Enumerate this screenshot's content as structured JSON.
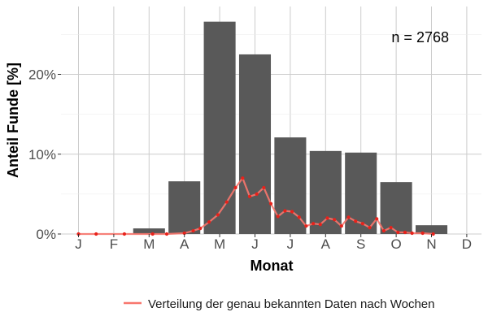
{
  "chart_data": {
    "type": "bar",
    "categories": [
      "J",
      "F",
      "M",
      "A",
      "M",
      "J",
      "J",
      "A",
      "S",
      "O",
      "N",
      "D"
    ],
    "values": [
      0,
      0,
      0.7,
      6.6,
      26.6,
      22.5,
      12.1,
      10.4,
      10.2,
      6.5,
      1.1,
      0
    ],
    "xlabel": "Monat",
    "ylabel": "Anteil Funde [%]",
    "ylim": [
      0,
      28.5
    ],
    "y_ticks": [
      0,
      10,
      20
    ],
    "y_tick_labels": [
      "0%",
      "10%",
      "20%"
    ],
    "annotation": "n = 2768",
    "grid": true,
    "legend_position": "bottom-right",
    "bar_color": "#595959",
    "line_series": {
      "name": "Verteilung der genau bekannten Daten nach Wochen",
      "color": "#f8766d",
      "points": [
        [
          0.0,
          0
        ],
        [
          0.5,
          0
        ],
        [
          1.3,
          0
        ],
        [
          2.1,
          0
        ],
        [
          2.5,
          0
        ],
        [
          3.0,
          0.1
        ],
        [
          3.25,
          0.4
        ],
        [
          3.45,
          0.7
        ],
        [
          3.7,
          1.5
        ],
        [
          3.95,
          2.4
        ],
        [
          4.2,
          4.0
        ],
        [
          4.45,
          5.8
        ],
        [
          4.65,
          7.0
        ],
        [
          4.85,
          4.7
        ],
        [
          5.05,
          5.0
        ],
        [
          5.25,
          5.8
        ],
        [
          5.45,
          3.8
        ],
        [
          5.65,
          2.2
        ],
        [
          5.85,
          2.9
        ],
        [
          6.05,
          2.8
        ],
        [
          6.25,
          2.1
        ],
        [
          6.45,
          1.0
        ],
        [
          6.65,
          1.3
        ],
        [
          6.85,
          1.2
        ],
        [
          7.05,
          2.0
        ],
        [
          7.25,
          1.8
        ],
        [
          7.45,
          1.0
        ],
        [
          7.65,
          2.1
        ],
        [
          7.85,
          1.6
        ],
        [
          8.05,
          1.3
        ],
        [
          8.25,
          0.8
        ],
        [
          8.45,
          1.9
        ],
        [
          8.65,
          0.4
        ],
        [
          8.85,
          0.8
        ],
        [
          9.05,
          0.2
        ],
        [
          9.25,
          0.2
        ],
        [
          9.45,
          0.1
        ],
        [
          9.75,
          0.1
        ],
        [
          10.05,
          0
        ]
      ]
    }
  }
}
